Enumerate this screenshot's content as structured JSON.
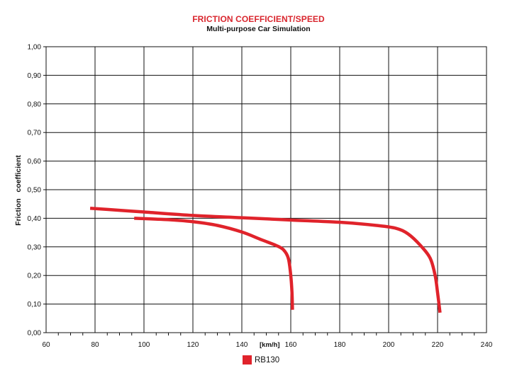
{
  "chart_data": {
    "type": "line",
    "title": "FRICTION COEFFICIENT/SPEED",
    "subtitle": "Multi-purpose Car Simulation",
    "ylabel": "Friction   coefficient",
    "xlabel": "[km/h]",
    "xlim": [
      60,
      240
    ],
    "ylim": [
      0,
      1
    ],
    "x_ticks": [
      "60",
      "80",
      "100",
      "120",
      "140",
      "160",
      "180",
      "200",
      "220",
      "240"
    ],
    "y_ticks": [
      "0,00",
      "0,10",
      "0,20",
      "0,30",
      "0,40",
      "0,50",
      "0,60",
      "0,70",
      "0,80",
      "0,90",
      "1,00"
    ],
    "grid": true,
    "legend_position": "bottom",
    "series": [
      {
        "name": "RB130",
        "color": "#e0232b",
        "points": [
          [
            78,
            0.435
          ],
          [
            90,
            0.428
          ],
          [
            100,
            0.422
          ],
          [
            120,
            0.41
          ],
          [
            140,
            0.402
          ],
          [
            160,
            0.394
          ],
          [
            180,
            0.386
          ],
          [
            195,
            0.375
          ],
          [
            203,
            0.365
          ],
          [
            208,
            0.345
          ],
          [
            213,
            0.305
          ],
          [
            217,
            0.26
          ],
          [
            219,
            0.2
          ],
          [
            220,
            0.14
          ],
          [
            221,
            0.07
          ]
        ]
      },
      {
        "name": "",
        "color": "#e0232b",
        "points": [
          [
            96,
            0.4
          ],
          [
            110,
            0.395
          ],
          [
            120,
            0.388
          ],
          [
            130,
            0.375
          ],
          [
            140,
            0.352
          ],
          [
            148,
            0.325
          ],
          [
            154,
            0.305
          ],
          [
            157,
            0.29
          ],
          [
            159,
            0.26
          ],
          [
            160,
            0.2
          ],
          [
            160.5,
            0.14
          ],
          [
            160.7,
            0.08
          ]
        ]
      }
    ]
  }
}
